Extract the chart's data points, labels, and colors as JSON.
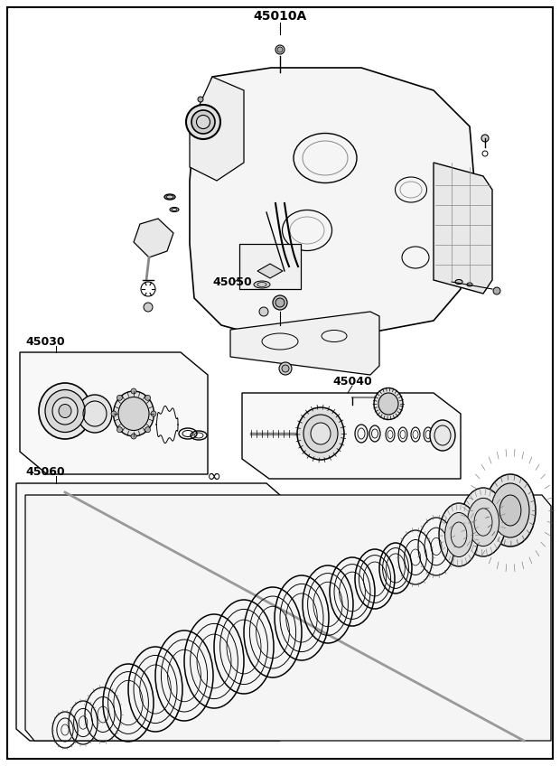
{
  "title": "45010A",
  "background_color": "#ffffff",
  "border_color": "#000000",
  "line_color": "#000000",
  "label_45010A": "45010A",
  "label_45030": "45030",
  "label_45040": "45040",
  "label_45050": "45050",
  "label_45060": "45060",
  "fig_width": 6.2,
  "fig_height": 8.48,
  "dpi": 100
}
